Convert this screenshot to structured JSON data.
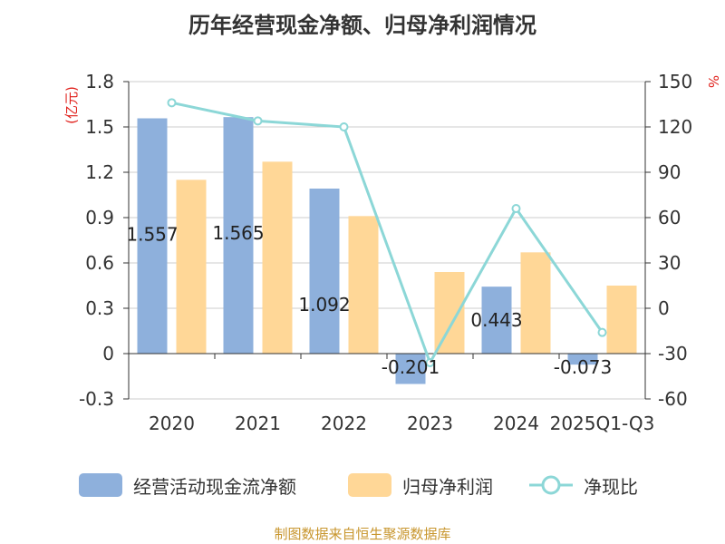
{
  "title": "历年经营现金净额、归母净利润情况",
  "source": "制图数据来自恒生聚源数据库",
  "chart_data": {
    "type": "bar",
    "categories": [
      "2020",
      "2021",
      "2022",
      "2023",
      "2024",
      "2025Q1-Q3"
    ],
    "left_axis_unit": "(亿元)",
    "right_axis_unit": "%",
    "ylim_left": [
      -0.3,
      1.8
    ],
    "yticks_left": [
      "-0.3",
      "0",
      "0.3",
      "0.6",
      "0.9",
      "1.2",
      "1.5",
      "1.8"
    ],
    "ylim_right": [
      -60,
      150
    ],
    "yticks_right": [
      "-60",
      "-30",
      "0",
      "30",
      "60",
      "90",
      "120",
      "150"
    ],
    "grid": true,
    "legend_position": "bottom",
    "series": [
      {
        "name": "经营活动现金流净额",
        "kind": "bar",
        "axis": "left",
        "color": "#8eb0dc",
        "values": [
          1.557,
          1.565,
          1.092,
          -0.201,
          0.443,
          -0.073
        ],
        "labels": [
          "1.557",
          "1.565",
          "1.092",
          "-0.201",
          "0.443",
          "-0.073"
        ]
      },
      {
        "name": "归母净利润",
        "kind": "bar",
        "axis": "left",
        "color": "#ffd797",
        "values": [
          1.15,
          1.27,
          0.91,
          0.54,
          0.67,
          0.45
        ]
      },
      {
        "name": "净现比",
        "kind": "line",
        "axis": "right",
        "color": "#8cd7d7",
        "values": [
          136,
          124,
          120,
          -36,
          66,
          -16
        ]
      }
    ]
  }
}
